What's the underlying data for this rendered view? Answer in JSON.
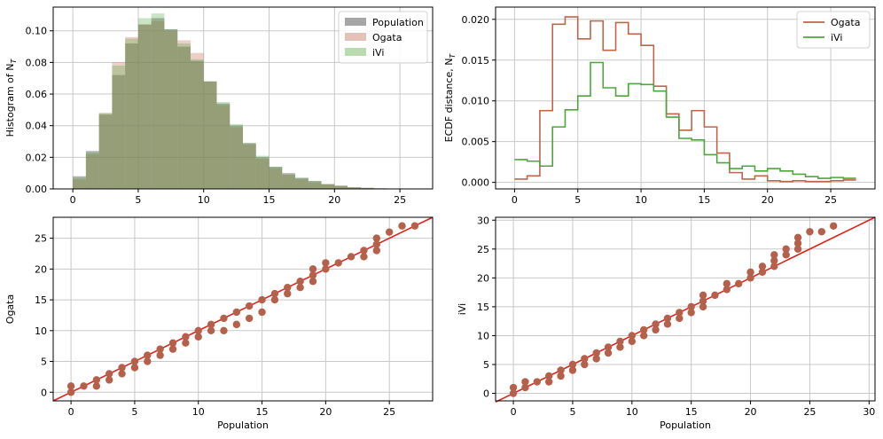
{
  "colors": {
    "population": "#808080",
    "ogata": "#c0644a",
    "ivi": "#4da63a",
    "scatter": "#b5604a",
    "diag": "#e0241c",
    "grid": "#c8c8c8"
  },
  "chart_data": [
    {
      "type": "bar",
      "title": "",
      "xlabel": "",
      "ylabel": "Histogram of N",
      "ylabel_sub": "T",
      "xlim": [
        -1.5,
        27.5
      ],
      "ylim": [
        0,
        0.115
      ],
      "xticks": [
        0,
        5,
        10,
        15,
        20,
        25
      ],
      "yticks": [
        0.0,
        0.02,
        0.04,
        0.06,
        0.08,
        0.1
      ],
      "ytick_labels": [
        "0.00",
        "0.02",
        "0.04",
        "0.06",
        "0.08",
        "0.10"
      ],
      "bin_start": 0,
      "bin_width": 1,
      "legend": "top-right",
      "series": [
        {
          "name": "Population",
          "values": [
            0.008,
            0.024,
            0.047,
            0.072,
            0.092,
            0.104,
            0.108,
            0.101,
            0.09,
            0.081,
            0.068,
            0.054,
            0.04,
            0.029,
            0.02,
            0.014,
            0.01,
            0.007,
            0.005,
            0.003,
            0.002,
            0.001,
            0.0007,
            0.0004,
            0.0002,
            0.0001
          ]
        },
        {
          "name": "Ogata",
          "values": [
            0.006,
            0.022,
            0.048,
            0.08,
            0.096,
            0.104,
            0.106,
            0.1,
            0.094,
            0.086,
            0.068,
            0.053,
            0.039,
            0.028,
            0.019,
            0.013,
            0.009,
            0.006,
            0.004,
            0.003,
            0.002,
            0.001,
            0.0006,
            0.0003,
            0.0002,
            0.0001
          ]
        },
        {
          "name": "iVi",
          "values": [
            0.007,
            0.023,
            0.048,
            0.078,
            0.095,
            0.108,
            0.111,
            0.101,
            0.092,
            0.082,
            0.068,
            0.055,
            0.041,
            0.029,
            0.021,
            0.014,
            0.009,
            0.007,
            0.005,
            0.003,
            0.002,
            0.001,
            0.0006,
            0.0003,
            0.0002,
            0.0001
          ]
        }
      ]
    },
    {
      "type": "line",
      "title": "",
      "xlabel": "",
      "ylabel": "ECDF distance, N",
      "ylabel_sub": "T",
      "xlim": [
        -1.5,
        28.5
      ],
      "ylim": [
        -0.0008,
        0.0215
      ],
      "xticks": [
        0,
        5,
        10,
        15,
        20,
        25
      ],
      "yticks": [
        0.0,
        0.005,
        0.01,
        0.015,
        0.02
      ],
      "ytick_labels": [
        "0.000",
        "0.005",
        "0.010",
        "0.015",
        "0.020"
      ],
      "step": "post",
      "x": [
        0,
        1,
        2,
        3,
        4,
        5,
        6,
        7,
        8,
        9,
        10,
        11,
        12,
        13,
        14,
        15,
        16,
        17,
        18,
        19,
        20,
        21,
        22,
        23,
        24,
        25,
        26,
        27
      ],
      "legend": "top-right",
      "series": [
        {
          "name": "Ogata",
          "values": [
            0.0004,
            0.0008,
            0.0088,
            0.0194,
            0.0203,
            0.0176,
            0.0198,
            0.0162,
            0.0196,
            0.0182,
            0.0168,
            0.0118,
            0.0084,
            0.0064,
            0.0088,
            0.0068,
            0.0036,
            0.0012,
            0.0004,
            0.0008,
            0.0002,
            0.0001,
            0.0002,
            0.0001,
            0.0001,
            0.0002,
            0.0003,
            0.0003
          ]
        },
        {
          "name": "iVi",
          "values": [
            0.0028,
            0.0026,
            0.002,
            0.0068,
            0.0089,
            0.0106,
            0.0147,
            0.0116,
            0.0106,
            0.0121,
            0.012,
            0.0112,
            0.008,
            0.0054,
            0.0052,
            0.0034,
            0.0024,
            0.0017,
            0.002,
            0.0014,
            0.0017,
            0.0014,
            0.001,
            0.0007,
            0.0005,
            0.0006,
            0.0005,
            0.0005
          ]
        }
      ]
    },
    {
      "type": "scatter",
      "title": "",
      "xlabel": "Population",
      "ylabel": "Ogata",
      "xlim": [
        -1.4,
        28.4
      ],
      "ylim": [
        -1.4,
        28.4
      ],
      "xticks": [
        0,
        5,
        10,
        15,
        20,
        25
      ],
      "yticks": [
        0,
        5,
        10,
        15,
        20,
        25
      ],
      "diagonal": true,
      "points": [
        [
          0,
          0
        ],
        [
          0,
          1
        ],
        [
          1,
          1
        ],
        [
          2,
          1
        ],
        [
          2,
          2
        ],
        [
          3,
          2
        ],
        [
          3,
          3
        ],
        [
          4,
          3
        ],
        [
          4,
          4
        ],
        [
          5,
          4
        ],
        [
          5,
          5
        ],
        [
          6,
          5
        ],
        [
          6,
          6
        ],
        [
          7,
          6
        ],
        [
          7,
          7
        ],
        [
          8,
          7
        ],
        [
          8,
          8
        ],
        [
          9,
          8
        ],
        [
          9,
          9
        ],
        [
          10,
          9
        ],
        [
          10,
          10
        ],
        [
          11,
          10
        ],
        [
          11,
          11
        ],
        [
          12,
          10
        ],
        [
          12,
          12
        ],
        [
          13,
          11
        ],
        [
          13,
          13
        ],
        [
          14,
          12
        ],
        [
          14,
          14
        ],
        [
          15,
          13
        ],
        [
          15,
          15
        ],
        [
          16,
          15
        ],
        [
          16,
          16
        ],
        [
          17,
          16
        ],
        [
          17,
          17
        ],
        [
          18,
          17
        ],
        [
          18,
          18
        ],
        [
          19,
          18
        ],
        [
          19,
          19
        ],
        [
          19,
          20
        ],
        [
          20,
          20
        ],
        [
          20,
          21
        ],
        [
          21,
          21
        ],
        [
          22,
          22
        ],
        [
          23,
          22
        ],
        [
          23,
          23
        ],
        [
          24,
          23
        ],
        [
          24,
          24
        ],
        [
          24,
          25
        ],
        [
          25,
          26
        ],
        [
          26,
          27
        ],
        [
          27,
          27
        ]
      ]
    },
    {
      "type": "scatter",
      "title": "",
      "xlabel": "Population",
      "ylabel": "iVi",
      "xlim": [
        -1.5,
        30.5
      ],
      "ylim": [
        -1.3,
        30.5
      ],
      "xticks": [
        0,
        5,
        10,
        15,
        20,
        25,
        30
      ],
      "yticks": [
        0,
        5,
        10,
        15,
        20,
        25,
        30
      ],
      "diagonal": true,
      "points": [
        [
          0,
          0
        ],
        [
          0,
          1
        ],
        [
          1,
          1
        ],
        [
          1,
          2
        ],
        [
          2,
          2
        ],
        [
          3,
          2
        ],
        [
          3,
          3
        ],
        [
          4,
          3
        ],
        [
          4,
          4
        ],
        [
          5,
          4
        ],
        [
          5,
          5
        ],
        [
          6,
          5
        ],
        [
          6,
          6
        ],
        [
          7,
          6
        ],
        [
          7,
          7
        ],
        [
          8,
          7
        ],
        [
          8,
          8
        ],
        [
          9,
          8
        ],
        [
          9,
          9
        ],
        [
          10,
          9
        ],
        [
          10,
          10
        ],
        [
          11,
          10
        ],
        [
          11,
          11
        ],
        [
          12,
          11
        ],
        [
          12,
          12
        ],
        [
          13,
          12
        ],
        [
          13,
          13
        ],
        [
          14,
          13
        ],
        [
          14,
          14
        ],
        [
          15,
          14
        ],
        [
          15,
          15
        ],
        [
          16,
          15
        ],
        [
          16,
          16
        ],
        [
          16,
          17
        ],
        [
          17,
          17
        ],
        [
          18,
          18
        ],
        [
          18,
          19
        ],
        [
          19,
          19
        ],
        [
          20,
          20
        ],
        [
          20,
          21
        ],
        [
          21,
          21
        ],
        [
          21,
          22
        ],
        [
          22,
          22
        ],
        [
          22,
          23
        ],
        [
          22,
          24
        ],
        [
          23,
          24
        ],
        [
          23,
          25
        ],
        [
          24,
          25
        ],
        [
          24,
          26
        ],
        [
          24,
          27
        ],
        [
          25,
          28
        ],
        [
          26,
          28
        ],
        [
          27,
          29
        ]
      ]
    }
  ]
}
